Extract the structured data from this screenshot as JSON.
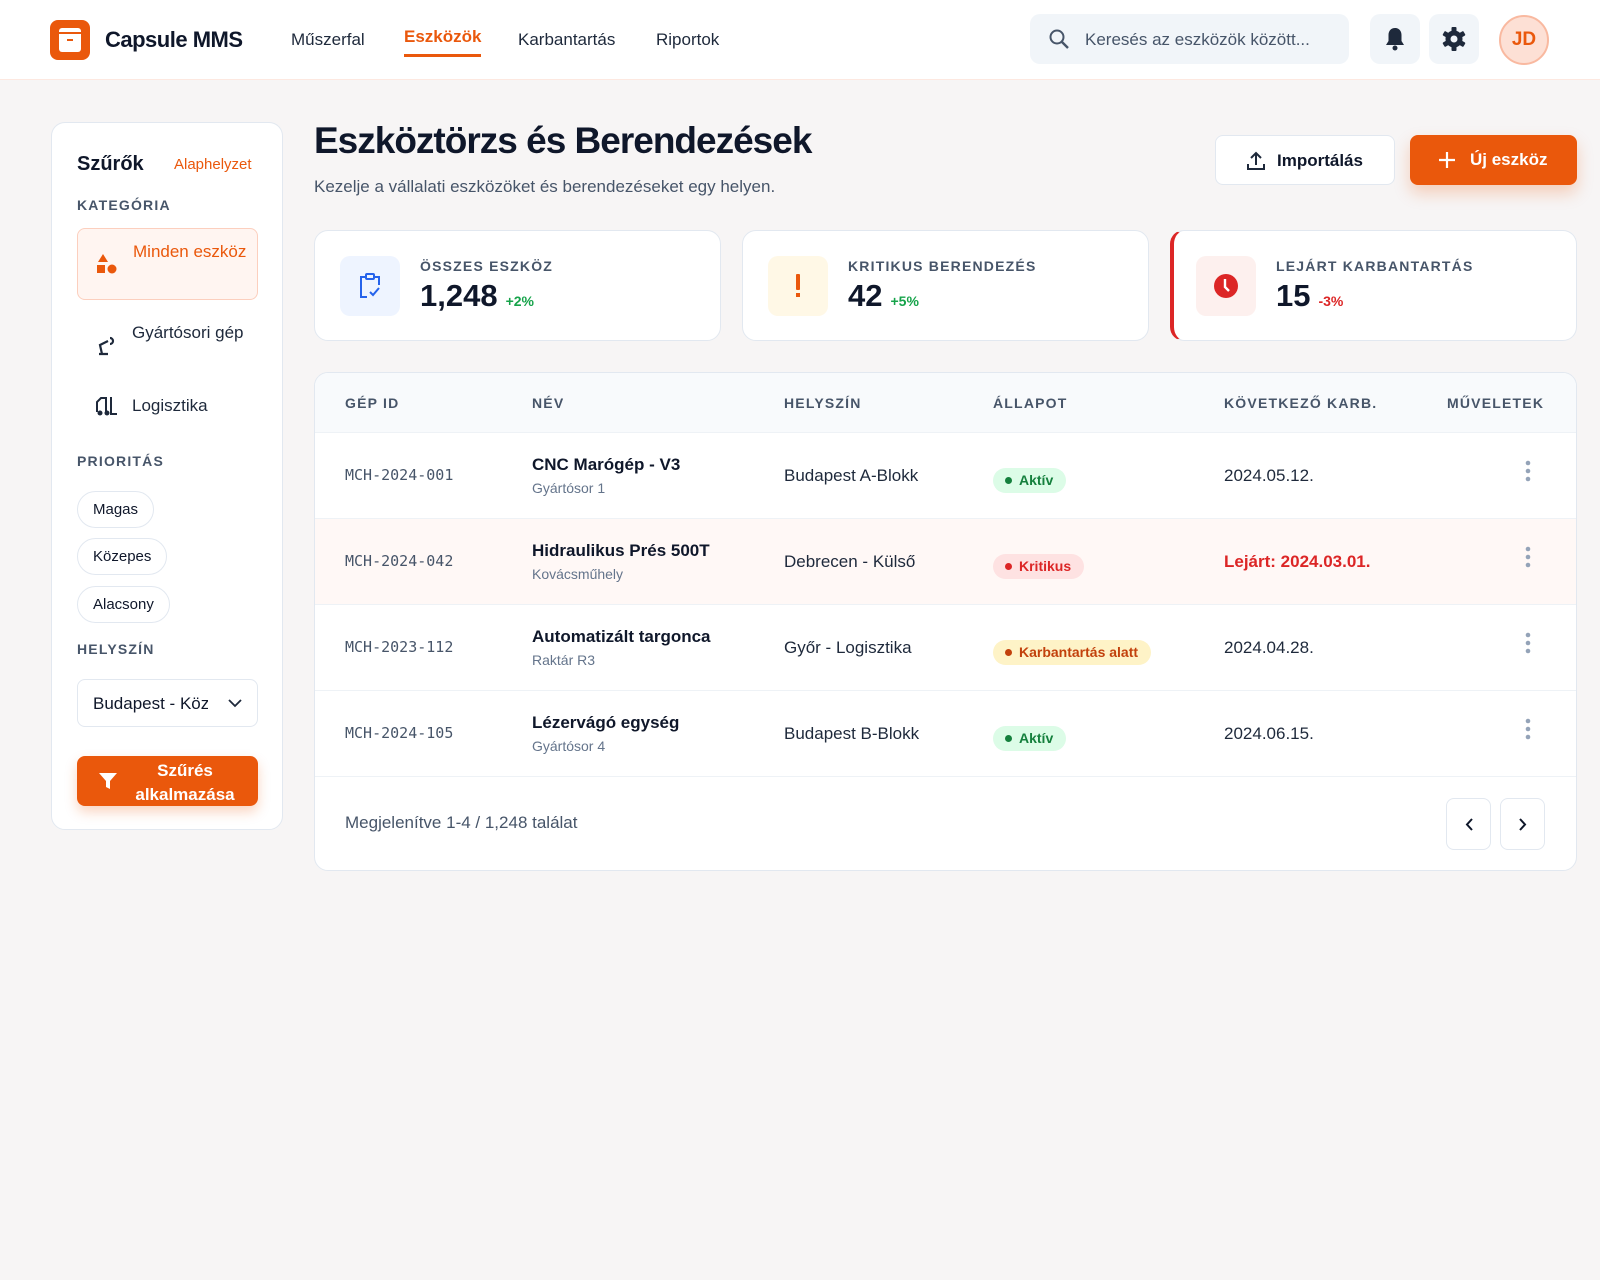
{
  "header": {
    "brand": "Capsule MMS",
    "nav": [
      {
        "label": "Műszerfal",
        "active": false
      },
      {
        "label": "Eszközök",
        "active": true
      },
      {
        "label": "Karbantartás",
        "active": false
      },
      {
        "label": "Riportok",
        "active": false
      }
    ],
    "search_placeholder": "Keresés az eszközök között...",
    "avatar_initials": "JD"
  },
  "sidebar": {
    "title": "Szűrők",
    "reset": "Alaphelyzet",
    "category_label": "KATEGÓRIA",
    "categories": [
      {
        "label": "Minden eszköz",
        "icon": "shapes-icon",
        "selected": true
      },
      {
        "label": "Gyártósori gép",
        "icon": "robot-arm-icon",
        "selected": false
      },
      {
        "label": "Logisztika",
        "icon": "forklift-icon",
        "selected": false
      }
    ],
    "priority_label": "PRIORITÁS",
    "priorities": [
      "Magas",
      "Közepes",
      "Alacsony"
    ],
    "location_label": "HELYSZÍN",
    "location_value": "Budapest - Központ",
    "apply": "Szűrés alkalmazása"
  },
  "main": {
    "title": "Eszköztörzs és Berendezések",
    "subtitle": "Kezelje a vállalati eszközöket és berendezéseket egy helyen.",
    "import": "Importálás",
    "new": "Új eszköz"
  },
  "stats": [
    {
      "label": "ÖSSZES ESZKÖZ",
      "value": "1,248",
      "delta": "+2%",
      "icon": "clipboard-check-icon"
    },
    {
      "label": "KRITIKUS BERENDEZÉS",
      "value": "42",
      "delta": "+5%",
      "icon": "exclamation-icon"
    },
    {
      "label": "LEJÁRT KARBANTARTÁS",
      "value": "15",
      "delta": "-3%",
      "icon": "clock-icon"
    }
  ],
  "table": {
    "columns": [
      "GÉP ID",
      "NÉV",
      "HELYSZÍN",
      "ÁLLAPOT",
      "KÖVETKEZŐ KARB.",
      "MŰVELETEK"
    ],
    "rows": [
      {
        "id": "MCH-2024-001",
        "name": "CNC Marógép - V3",
        "sub": "Gyártósor 1",
        "location": "Budapest A-Blokk",
        "status": "Aktív",
        "next": "2024.05.12."
      },
      {
        "id": "MCH-2024-042",
        "name": "Hidraulikus Prés 500T",
        "sub": "Kovácsműhely",
        "location": "Debrecen - Külső",
        "status": "Kritikus",
        "next": "Lejárt: 2024.03.01."
      },
      {
        "id": "MCH-2023-112",
        "name": "Automatizált targonca",
        "sub": "Raktár R3",
        "location": "Győr - Logisztika",
        "status": "Karbantartás alatt",
        "next": "2024.04.28."
      },
      {
        "id": "MCH-2024-105",
        "name": "Lézervágó egység",
        "sub": "Gyártósor 4",
        "location": "Budapest B-Blokk",
        "status": "Aktív",
        "next": "2024.06.15."
      }
    ],
    "footer": "Megjelenítve 1-4 / 1,248 találat"
  },
  "colors": {
    "accent": "#ea580c",
    "active": "#15803d",
    "critical": "#dc2626",
    "maintenance": "#c2410c"
  }
}
